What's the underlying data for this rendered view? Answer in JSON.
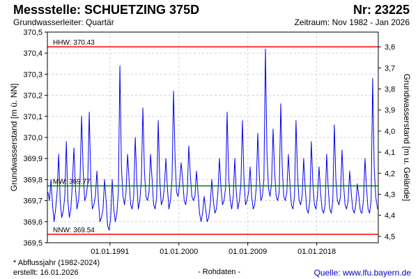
{
  "header": {
    "station_label": "Messstelle: SCHUETZING 375D",
    "number_label": "Nr: 23225",
    "aquifer_label": "Grundwasserleiter: Quartär",
    "period_label": "Zeitraum: Nov 1982 - Jan 2026"
  },
  "footer": {
    "note": "* Abflussjahr (1982-2024)",
    "created": "erstellt:  16.01.2026",
    "raw_data": "- Rohdaten -",
    "source": "Quelle: www.lfu.bayern.de"
  },
  "colors": {
    "series": "#0000ee",
    "extreme_lines": "#ff0000",
    "mean_line": "#008000",
    "grid": "#d0d0d0",
    "axis": "#000000"
  },
  "chart_data": {
    "type": "line",
    "ylabel": "Grundwasserstand [m ü. NN]",
    "y2label": "Grundwasserstand [m u. Gelände]",
    "ylim": [
      369.5,
      370.5
    ],
    "y_ticks": [
      "369,5",
      "369,6",
      "369,7",
      "369,8",
      "369,9",
      "370,0",
      "370,1",
      "370,2",
      "370,3",
      "370,4",
      "370,5"
    ],
    "y_tick_values": [
      369.5,
      369.6,
      369.7,
      369.8,
      369.9,
      370.0,
      370.1,
      370.2,
      370.3,
      370.4,
      370.5
    ],
    "y2_ticks": [
      "3,6",
      "3,7",
      "3,8",
      "3,9",
      "4,0",
      "4,1",
      "4,2",
      "4,3",
      "4,4",
      "4,5"
    ],
    "y2_tick_values": [
      3.6,
      3.7,
      3.8,
      3.9,
      4.0,
      4.1,
      4.2,
      4.3,
      4.4,
      4.5
    ],
    "y2_offset": 374.03,
    "x_range": [
      1982.83,
      2026.04
    ],
    "x_tick_labels": [
      "01.01.1991",
      "01.01.2000",
      "01.01.2009",
      "01.01.2018"
    ],
    "x_tick_values": [
      1991.0,
      2000.0,
      2009.0,
      2018.0
    ],
    "grid": true,
    "reference_lines": [
      {
        "label": "HHW: 370.43",
        "value": 370.43,
        "kind": "extreme"
      },
      {
        "label": "MW: 369.77",
        "value": 369.77,
        "kind": "mean"
      },
      {
        "label": "NNW: 369.54",
        "value": 369.54,
        "kind": "extreme"
      }
    ],
    "series": [
      {
        "x": [
          1982.9,
          1983.1,
          1983.3,
          1983.5,
          1983.7,
          1983.9,
          1984.1,
          1984.3,
          1984.5,
          1984.7,
          1984.9,
          1985.1,
          1985.3,
          1985.5,
          1985.7,
          1985.9,
          1986.1,
          1986.3,
          1986.5,
          1986.7,
          1986.9,
          1987.1,
          1987.3,
          1987.5,
          1987.7,
          1987.9,
          1988.1,
          1988.3,
          1988.5,
          1988.7,
          1988.9,
          1989.1,
          1989.3,
          1989.5,
          1989.7,
          1989.9,
          1990.1,
          1990.3,
          1990.5,
          1990.7,
          1990.9,
          1991.1,
          1991.3,
          1991.5,
          1991.7,
          1991.9,
          1992.1,
          1992.3,
          1992.5,
          1992.7,
          1992.9,
          1993.1,
          1993.3,
          1993.5,
          1993.7,
          1993.9,
          1994.1,
          1994.3,
          1994.5,
          1994.7,
          1994.9,
          1995.1,
          1995.3,
          1995.5,
          1995.7,
          1995.9,
          1996.1,
          1996.3,
          1996.5,
          1996.7,
          1996.9,
          1997.1,
          1997.3,
          1997.5,
          1997.7,
          1997.9,
          1998.1,
          1998.3,
          1998.5,
          1998.7,
          1998.9,
          1999.1,
          1999.3,
          1999.5,
          1999.7,
          1999.9,
          2000.1,
          2000.3,
          2000.5,
          2000.7,
          2000.9,
          2001.1,
          2001.3,
          2001.5,
          2001.7,
          2001.9,
          2002.1,
          2002.3,
          2002.5,
          2002.7,
          2002.9,
          2003.1,
          2003.3,
          2003.5,
          2003.7,
          2003.9,
          2004.1,
          2004.3,
          2004.5,
          2004.7,
          2004.9,
          2005.1,
          2005.3,
          2005.5,
          2005.7,
          2005.9,
          2006.1,
          2006.3,
          2006.5,
          2006.7,
          2006.9,
          2007.1,
          2007.3,
          2007.5,
          2007.7,
          2007.9,
          2008.1,
          2008.3,
          2008.5,
          2008.7,
          2008.9,
          2009.1,
          2009.3,
          2009.5,
          2009.7,
          2009.9,
          2010.1,
          2010.3,
          2010.5,
          2010.7,
          2010.9,
          2011.1,
          2011.3,
          2011.5,
          2011.7,
          2011.9,
          2012.1,
          2012.3,
          2012.5,
          2012.7,
          2012.9,
          2013.1,
          2013.3,
          2013.5,
          2013.7,
          2013.9,
          2014.1,
          2014.3,
          2014.5,
          2014.7,
          2014.9,
          2015.1,
          2015.3,
          2015.5,
          2015.7,
          2015.9,
          2016.1,
          2016.3,
          2016.5,
          2016.7,
          2016.9,
          2017.1,
          2017.3,
          2017.5,
          2017.7,
          2017.9,
          2018.1,
          2018.3,
          2018.5,
          2018.7,
          2018.9,
          2019.1,
          2019.3,
          2019.5,
          2019.7,
          2019.9,
          2020.1,
          2020.3,
          2020.5,
          2020.7,
          2020.9,
          2021.1,
          2021.3,
          2021.5,
          2021.7,
          2021.9,
          2022.1,
          2022.3,
          2022.5,
          2022.7,
          2022.9,
          2023.1,
          2023.3,
          2023.5,
          2023.7,
          2023.9,
          2024.1,
          2024.3,
          2024.5,
          2024.7,
          2024.9,
          2025.1,
          2025.3,
          2025.5,
          2025.7,
          2025.95
        ],
        "y": [
          369.74,
          369.7,
          369.8,
          369.68,
          369.6,
          369.66,
          369.74,
          369.92,
          369.7,
          369.62,
          369.65,
          369.72,
          369.98,
          369.7,
          369.62,
          369.66,
          369.78,
          369.95,
          369.76,
          369.66,
          369.7,
          369.8,
          370.1,
          369.85,
          369.7,
          369.72,
          369.78,
          370.12,
          369.8,
          369.66,
          369.68,
          369.72,
          369.84,
          369.7,
          369.6,
          369.62,
          369.66,
          369.8,
          369.7,
          369.58,
          369.56,
          369.62,
          369.8,
          369.66,
          369.6,
          369.64,
          369.74,
          370.34,
          369.86,
          369.72,
          369.68,
          369.74,
          369.92,
          369.8,
          369.68,
          369.66,
          369.72,
          370.0,
          369.8,
          369.66,
          369.7,
          369.8,
          370.14,
          369.84,
          369.72,
          369.7,
          369.74,
          369.92,
          369.8,
          369.68,
          369.66,
          369.72,
          370.08,
          369.8,
          369.68,
          369.7,
          369.76,
          369.9,
          369.76,
          369.66,
          369.7,
          369.8,
          370.22,
          369.9,
          369.74,
          369.72,
          369.78,
          369.88,
          369.8,
          369.7,
          369.68,
          369.74,
          369.96,
          369.82,
          369.72,
          369.7,
          369.72,
          369.84,
          369.74,
          369.64,
          369.6,
          369.64,
          369.72,
          369.66,
          369.6,
          369.62,
          369.68,
          369.8,
          369.7,
          369.64,
          369.66,
          369.74,
          369.9,
          369.76,
          369.68,
          369.7,
          369.76,
          370.12,
          369.82,
          369.7,
          369.66,
          369.72,
          369.9,
          369.74,
          369.66,
          369.7,
          369.78,
          370.08,
          369.8,
          369.68,
          369.7,
          369.74,
          369.86,
          369.72,
          369.66,
          369.68,
          369.76,
          370.02,
          369.82,
          369.7,
          369.72,
          369.8,
          370.42,
          369.92,
          369.76,
          369.72,
          369.78,
          370.04,
          369.84,
          369.72,
          369.7,
          369.74,
          370.16,
          369.86,
          369.72,
          369.7,
          369.74,
          369.92,
          369.78,
          369.68,
          369.66,
          369.72,
          370.08,
          369.82,
          369.7,
          369.68,
          369.72,
          369.9,
          369.76,
          369.66,
          369.64,
          369.7,
          369.98,
          369.78,
          369.68,
          369.66,
          369.72,
          369.86,
          369.74,
          369.66,
          369.64,
          369.68,
          369.92,
          369.76,
          369.66,
          369.64,
          369.7,
          370.06,
          369.8,
          369.7,
          369.68,
          369.72,
          369.94,
          369.78,
          369.68,
          369.66,
          369.7,
          369.84,
          369.74,
          369.66,
          369.64,
          369.68,
          369.78,
          369.72,
          369.65,
          369.64,
          369.7,
          369.9,
          369.76,
          369.66,
          369.64,
          369.7,
          370.28,
          369.86,
          369.72,
          369.66
        ]
      }
    ]
  }
}
